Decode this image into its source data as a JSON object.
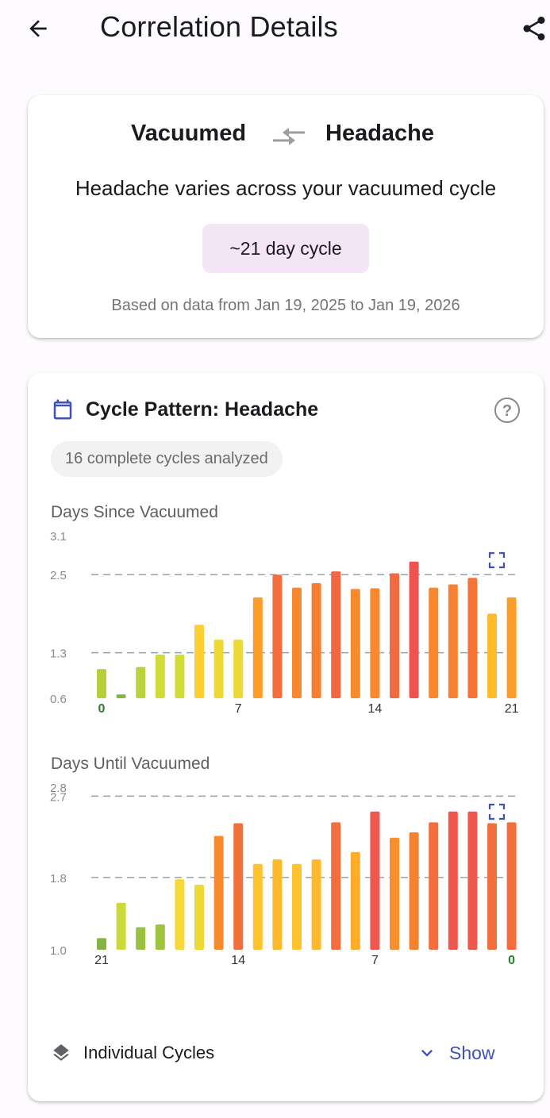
{
  "appbar": {
    "title": "Correlation Details",
    "back_icon": "arrow-left-icon",
    "share_icon": "share-icon"
  },
  "summary_card": {
    "variable_a": "Vacuumed",
    "variable_b": "Headache",
    "swap_icon": "compare-arrows-icon",
    "summary": "Headache varies across your vacuumed cycle",
    "cycle_chip": "~21 day cycle",
    "date_range": "Based on data from Jan 19, 2025 to Jan 19, 2026"
  },
  "pattern_card": {
    "title": "Cycle Pattern: Headache",
    "calendar_icon": "calendar-icon",
    "help_icon": "help-circle-icon",
    "cycles_chip": "16 complete cycles analyzed",
    "individual_cycles_label": "Individual Cycles",
    "layers_icon": "layers-icon",
    "show_label": "Show",
    "chevron_icon": "chevron-down-icon"
  },
  "colors": {
    "accent": "#3f51b5",
    "chip_purple": "#f3e5f5",
    "green": "#2e7d32"
  },
  "chart_data": [
    {
      "type": "bar",
      "title": "Days Since Vacuumed",
      "x": [
        0,
        1,
        2,
        3,
        4,
        5,
        6,
        7,
        8,
        9,
        10,
        11,
        12,
        13,
        14,
        15,
        16,
        17,
        18,
        19,
        20,
        21
      ],
      "x_tick_labels": [
        "0",
        "7",
        "14",
        "21"
      ],
      "values": [
        1.05,
        0.66,
        1.08,
        1.27,
        1.27,
        1.73,
        1.5,
        1.5,
        2.15,
        2.5,
        2.3,
        2.37,
        2.55,
        2.28,
        2.29,
        2.52,
        2.7,
        2.3,
        2.35,
        2.45,
        1.9,
        2.15
      ],
      "y_tick_labels": [
        "3.1",
        "2.5",
        "1.3",
        "0.6"
      ],
      "ylim": [
        0.6,
        3.1
      ],
      "reference_lines": [
        2.5,
        1.3
      ],
      "grid": false
    },
    {
      "type": "bar",
      "title": "Days Until Vacuumed",
      "x": [
        21,
        20,
        19,
        18,
        17,
        16,
        15,
        14,
        13,
        12,
        11,
        10,
        9,
        8,
        7,
        6,
        5,
        4,
        3,
        2,
        1,
        0
      ],
      "x_tick_labels": [
        "21",
        "14",
        "7",
        "0"
      ],
      "values": [
        1.13,
        1.52,
        1.25,
        1.28,
        1.78,
        1.72,
        2.26,
        2.4,
        1.95,
        2.0,
        1.95,
        2.0,
        2.41,
        2.08,
        2.53,
        2.24,
        2.3,
        2.41,
        2.53,
        2.53,
        2.4,
        2.41
      ],
      "y_tick_labels": [
        "2.8",
        "2.7",
        "1.8",
        "1.0"
      ],
      "ylim": [
        1.0,
        2.8
      ],
      "reference_lines": [
        2.7,
        1.8
      ],
      "grid": false
    }
  ]
}
